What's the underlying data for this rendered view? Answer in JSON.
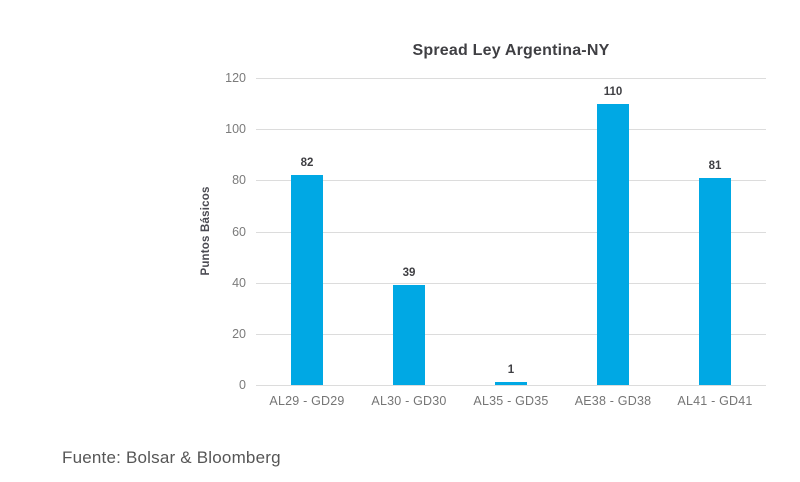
{
  "chart_data": {
    "type": "bar",
    "title": "Spread Ley Argentina-NY",
    "categories": [
      "AL29 - GD29",
      "AL30 - GD30",
      "AL35 - GD35",
      "AE38 - GD38",
      "AL41 - GD41"
    ],
    "values": [
      82,
      39,
      1,
      110,
      81
    ],
    "xlabel": "",
    "ylabel": "Puntos Básicos",
    "ylim": [
      0,
      120
    ],
    "yticks": [
      0,
      20,
      40,
      60,
      80,
      100,
      120
    ],
    "grid": true,
    "legend": "none",
    "bar_color": "#00a8e4",
    "value_label_color": "#3f3f43",
    "axis_text_color": "#7b7b7b",
    "gridline_color": "#dcdcdc",
    "title_color": "#3f3f43"
  },
  "footer": {
    "source_label": "Fuente: Bolsar & Bloomberg"
  }
}
